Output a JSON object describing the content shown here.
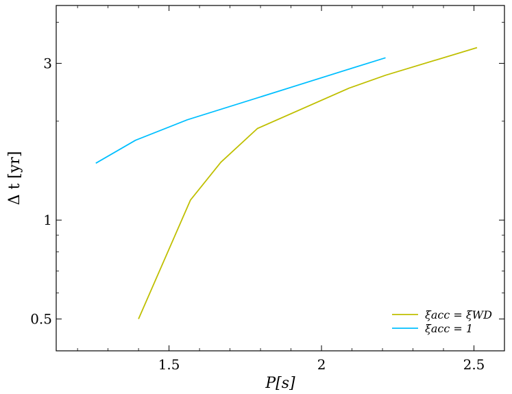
{
  "chart_data": {
    "type": "line",
    "xlabel": "P[s]",
    "ylabel": "Δ t [yr]",
    "x_scale": "linear",
    "y_scale": "log",
    "xlim": [
      1.13,
      2.6
    ],
    "ylim": [
      0.4,
      4.5
    ],
    "x_ticks": [
      {
        "value": 1.5,
        "label": "1.5"
      },
      {
        "value": 2,
        "label": "2"
      },
      {
        "value": 2.5,
        "label": "2.5"
      }
    ],
    "y_ticks": [
      {
        "value": 0.5,
        "label": "0.5"
      },
      {
        "value": 1,
        "label": "1"
      },
      {
        "value": 3,
        "label": "3"
      }
    ],
    "y_minor_ticks": [
      0.6,
      0.7,
      0.8,
      0.9,
      2,
      4
    ],
    "grid": false,
    "legend_position": "lower-right",
    "series": [
      {
        "name": "ξacc = ξWD",
        "color": "#bfbf00",
        "points": [
          {
            "x": 1.4,
            "y": 0.5
          },
          {
            "x": 1.57,
            "y": 1.15
          },
          {
            "x": 1.67,
            "y": 1.5
          },
          {
            "x": 1.79,
            "y": 1.9
          },
          {
            "x": 2.09,
            "y": 2.52
          },
          {
            "x": 2.21,
            "y": 2.76
          },
          {
            "x": 2.51,
            "y": 3.35
          }
        ]
      },
      {
        "name": "ξacc = 1",
        "color": "#00bfff",
        "points": [
          {
            "x": 1.26,
            "y": 1.49
          },
          {
            "x": 1.39,
            "y": 1.75
          },
          {
            "x": 1.56,
            "y": 2.02
          },
          {
            "x": 1.78,
            "y": 2.34
          },
          {
            "x": 2.1,
            "y": 2.9
          },
          {
            "x": 2.21,
            "y": 3.12
          }
        ]
      }
    ]
  }
}
